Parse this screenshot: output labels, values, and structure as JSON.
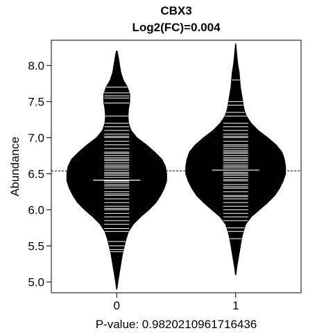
{
  "chart_data": {
    "type": "beanplot",
    "title": "CBX3",
    "subtitle": "Log2(FC)=0.004",
    "ylabel": "Abundance",
    "xlabel": "P-value: 0.9820210961716436",
    "categories": [
      "0",
      "1"
    ],
    "ylim": [
      4.85,
      8.35
    ],
    "xlim": [
      -0.55,
      1.55
    ],
    "y_ticks": [
      "5.0",
      "5.5",
      "6.0",
      "6.5",
      "7.0",
      "7.5",
      "8.0"
    ],
    "overall_mean": 6.54,
    "groups": [
      {
        "category": "0",
        "mean": 6.41,
        "range": [
          4.9,
          8.2
        ],
        "density": [
          [
            4.9,
            0.002
          ],
          [
            5.0,
            0.01
          ],
          [
            5.1,
            0.02
          ],
          [
            5.2,
            0.03
          ],
          [
            5.3,
            0.04
          ],
          [
            5.4,
            0.05
          ],
          [
            5.5,
            0.065
          ],
          [
            5.6,
            0.08
          ],
          [
            5.7,
            0.1
          ],
          [
            5.8,
            0.14
          ],
          [
            5.9,
            0.2
          ],
          [
            6.0,
            0.27
          ],
          [
            6.1,
            0.33
          ],
          [
            6.2,
            0.37
          ],
          [
            6.3,
            0.4
          ],
          [
            6.4,
            0.42
          ],
          [
            6.5,
            0.42
          ],
          [
            6.6,
            0.41
          ],
          [
            6.7,
            0.38
          ],
          [
            6.8,
            0.32
          ],
          [
            6.9,
            0.25
          ],
          [
            7.0,
            0.17
          ],
          [
            7.1,
            0.12
          ],
          [
            7.2,
            0.1
          ],
          [
            7.3,
            0.095
          ],
          [
            7.4,
            0.1
          ],
          [
            7.5,
            0.11
          ],
          [
            7.6,
            0.11
          ],
          [
            7.7,
            0.09
          ],
          [
            7.8,
            0.055
          ],
          [
            7.9,
            0.035
          ],
          [
            8.0,
            0.025
          ],
          [
            8.1,
            0.015
          ],
          [
            8.2,
            0.004
          ]
        ],
        "values": [
          5.42,
          5.45,
          5.5,
          5.56,
          5.7,
          5.74,
          5.8,
          5.85,
          5.9,
          5.95,
          6.0,
          6.02,
          6.05,
          6.1,
          6.15,
          6.2,
          6.22,
          6.25,
          6.3,
          6.33,
          6.35,
          6.38,
          6.4,
          6.41,
          6.45,
          6.48,
          6.5,
          6.52,
          6.55,
          6.58,
          6.6,
          6.62,
          6.65,
          6.68,
          6.7,
          6.72,
          6.75,
          6.78,
          6.8,
          6.85,
          6.9,
          6.95,
          7.0,
          7.02,
          7.05,
          7.1,
          7.15,
          7.2,
          7.3,
          7.48,
          7.55,
          7.58,
          7.62,
          7.7
        ]
      },
      {
        "category": "1",
        "mean": 6.55,
        "range": [
          5.1,
          8.3
        ],
        "density": [
          [
            5.1,
            0.002
          ],
          [
            5.2,
            0.01
          ],
          [
            5.3,
            0.02
          ],
          [
            5.4,
            0.03
          ],
          [
            5.5,
            0.04
          ],
          [
            5.6,
            0.05
          ],
          [
            5.7,
            0.065
          ],
          [
            5.8,
            0.085
          ],
          [
            5.9,
            0.13
          ],
          [
            6.0,
            0.2
          ],
          [
            6.1,
            0.27
          ],
          [
            6.2,
            0.33
          ],
          [
            6.3,
            0.37
          ],
          [
            6.4,
            0.4
          ],
          [
            6.5,
            0.42
          ],
          [
            6.6,
            0.42
          ],
          [
            6.7,
            0.41
          ],
          [
            6.8,
            0.39
          ],
          [
            6.9,
            0.34
          ],
          [
            7.0,
            0.27
          ],
          [
            7.1,
            0.19
          ],
          [
            7.2,
            0.13
          ],
          [
            7.3,
            0.09
          ],
          [
            7.4,
            0.07
          ],
          [
            7.5,
            0.06
          ],
          [
            7.6,
            0.05
          ],
          [
            7.7,
            0.04
          ],
          [
            7.8,
            0.035
          ],
          [
            7.9,
            0.03
          ],
          [
            8.0,
            0.02
          ],
          [
            8.1,
            0.013
          ],
          [
            8.2,
            0.007
          ],
          [
            8.3,
            0.002
          ]
        ],
        "values": [
          5.6,
          5.7,
          5.75,
          5.85,
          5.9,
          5.95,
          6.0,
          6.05,
          6.1,
          6.15,
          6.18,
          6.2,
          6.25,
          6.3,
          6.32,
          6.35,
          6.4,
          6.42,
          6.45,
          6.48,
          6.5,
          6.52,
          6.55,
          6.58,
          6.6,
          6.62,
          6.65,
          6.68,
          6.7,
          6.72,
          6.75,
          6.78,
          6.8,
          6.82,
          6.85,
          6.88,
          6.9,
          6.95,
          7.0,
          7.02,
          7.05,
          7.1,
          7.15,
          7.2,
          7.3,
          7.35,
          7.45,
          7.5,
          7.8
        ]
      }
    ]
  }
}
